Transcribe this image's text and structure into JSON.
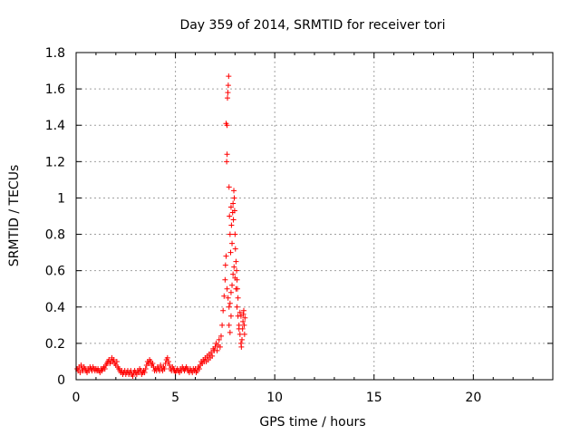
{
  "chart_data": {
    "type": "scatter",
    "title": "Day 359 of 2014, SRMTID for receiver tori",
    "xlabel": "GPS time / hours",
    "ylabel": "SRMTID / TECUs",
    "xlim": [
      0,
      24
    ],
    "ylim": [
      0,
      1.8
    ],
    "xticks": [
      0,
      5,
      10,
      15,
      20
    ],
    "xtick_labels": [
      "0",
      "5",
      "10",
      "15",
      "20"
    ],
    "yticks": [
      0,
      0.2,
      0.4,
      0.6,
      0.8,
      1.0,
      1.2,
      1.4,
      1.6,
      1.8
    ],
    "ytick_labels": [
      "0",
      "0.2",
      "0.4",
      "0.6",
      "0.8",
      "1",
      "1.2",
      "1.4",
      "1.6",
      "1.8"
    ],
    "grid": true,
    "marker": "+",
    "colors": {
      "series": "#ff0000",
      "axis": "#000000",
      "grid": "#a0a0a0"
    },
    "series": [
      {
        "name": "SRMTID",
        "points": [
          [
            0.05,
            0.06
          ],
          [
            0.1,
            0.05
          ],
          [
            0.15,
            0.07
          ],
          [
            0.2,
            0.04
          ],
          [
            0.25,
            0.08
          ],
          [
            0.3,
            0.06
          ],
          [
            0.35,
            0.05
          ],
          [
            0.4,
            0.07
          ],
          [
            0.45,
            0.06
          ],
          [
            0.5,
            0.05
          ],
          [
            0.55,
            0.04
          ],
          [
            0.6,
            0.06
          ],
          [
            0.65,
            0.05
          ],
          [
            0.7,
            0.07
          ],
          [
            0.75,
            0.06
          ],
          [
            0.8,
            0.05
          ],
          [
            0.85,
            0.07
          ],
          [
            0.9,
            0.06
          ],
          [
            0.95,
            0.05
          ],
          [
            1.0,
            0.06
          ],
          [
            1.05,
            0.05
          ],
          [
            1.1,
            0.06
          ],
          [
            1.15,
            0.05
          ],
          [
            1.2,
            0.04
          ],
          [
            1.25,
            0.06
          ],
          [
            1.3,
            0.05
          ],
          [
            1.35,
            0.06
          ],
          [
            1.4,
            0.07
          ],
          [
            1.45,
            0.06
          ],
          [
            1.5,
            0.08
          ],
          [
            1.55,
            0.09
          ],
          [
            1.6,
            0.1
          ],
          [
            1.65,
            0.11
          ],
          [
            1.7,
            0.09
          ],
          [
            1.75,
            0.1
          ],
          [
            1.8,
            0.12
          ],
          [
            1.85,
            0.1
          ],
          [
            1.9,
            0.11
          ],
          [
            1.95,
            0.09
          ],
          [
            2.0,
            0.08
          ],
          [
            2.05,
            0.1
          ],
          [
            2.1,
            0.07
          ],
          [
            2.15,
            0.06
          ],
          [
            2.2,
            0.05
          ],
          [
            2.25,
            0.04
          ],
          [
            2.3,
            0.05
          ],
          [
            2.35,
            0.03
          ],
          [
            2.4,
            0.04
          ],
          [
            2.45,
            0.05
          ],
          [
            2.5,
            0.03
          ],
          [
            2.55,
            0.04
          ],
          [
            2.6,
            0.05
          ],
          [
            2.65,
            0.03
          ],
          [
            2.7,
            0.04
          ],
          [
            2.75,
            0.05
          ],
          [
            2.8,
            0.03
          ],
          [
            2.85,
            0.02
          ],
          [
            2.9,
            0.04
          ],
          [
            2.95,
            0.05
          ],
          [
            3.0,
            0.04
          ],
          [
            3.05,
            0.03
          ],
          [
            3.1,
            0.05
          ],
          [
            3.15,
            0.04
          ],
          [
            3.2,
            0.06
          ],
          [
            3.25,
            0.05
          ],
          [
            3.3,
            0.03
          ],
          [
            3.35,
            0.04
          ],
          [
            3.4,
            0.05
          ],
          [
            3.45,
            0.04
          ],
          [
            3.5,
            0.06
          ],
          [
            3.55,
            0.08
          ],
          [
            3.6,
            0.1
          ],
          [
            3.65,
            0.09
          ],
          [
            3.7,
            0.11
          ],
          [
            3.75,
            0.1
          ],
          [
            3.8,
            0.08
          ],
          [
            3.85,
            0.09
          ],
          [
            3.9,
            0.07
          ],
          [
            3.95,
            0.05
          ],
          [
            4.0,
            0.06
          ],
          [
            4.05,
            0.05
          ],
          [
            4.1,
            0.07
          ],
          [
            4.15,
            0.06
          ],
          [
            4.2,
            0.05
          ],
          [
            4.25,
            0.08
          ],
          [
            4.3,
            0.06
          ],
          [
            4.35,
            0.05
          ],
          [
            4.4,
            0.07
          ],
          [
            4.45,
            0.06
          ],
          [
            4.5,
            0.09
          ],
          [
            4.55,
            0.11
          ],
          [
            4.6,
            0.12
          ],
          [
            4.65,
            0.1
          ],
          [
            4.7,
            0.08
          ],
          [
            4.75,
            0.06
          ],
          [
            4.8,
            0.05
          ],
          [
            4.85,
            0.07
          ],
          [
            4.9,
            0.06
          ],
          [
            4.95,
            0.05
          ],
          [
            5.0,
            0.04
          ],
          [
            5.05,
            0.05
          ],
          [
            5.1,
            0.06
          ],
          [
            5.15,
            0.05
          ],
          [
            5.2,
            0.04
          ],
          [
            5.25,
            0.06
          ],
          [
            5.3,
            0.05
          ],
          [
            5.35,
            0.07
          ],
          [
            5.4,
            0.06
          ],
          [
            5.45,
            0.05
          ],
          [
            5.5,
            0.06
          ],
          [
            5.55,
            0.07
          ],
          [
            5.6,
            0.06
          ],
          [
            5.65,
            0.05
          ],
          [
            5.7,
            0.04
          ],
          [
            5.75,
            0.06
          ],
          [
            5.8,
            0.05
          ],
          [
            5.85,
            0.04
          ],
          [
            5.9,
            0.06
          ],
          [
            5.95,
            0.05
          ],
          [
            6.0,
            0.06
          ],
          [
            6.05,
            0.04
          ],
          [
            6.1,
            0.05
          ],
          [
            6.15,
            0.07
          ],
          [
            6.2,
            0.06
          ],
          [
            6.25,
            0.08
          ],
          [
            6.3,
            0.1
          ],
          [
            6.35,
            0.09
          ],
          [
            6.4,
            0.11
          ],
          [
            6.45,
            0.1
          ],
          [
            6.5,
            0.12
          ],
          [
            6.55,
            0.1
          ],
          [
            6.6,
            0.13
          ],
          [
            6.65,
            0.11
          ],
          [
            6.7,
            0.14
          ],
          [
            6.75,
            0.12
          ],
          [
            6.8,
            0.15
          ],
          [
            6.85,
            0.13
          ],
          [
            6.9,
            0.17
          ],
          [
            6.95,
            0.16
          ],
          [
            7.0,
            0.18
          ],
          [
            7.05,
            0.2
          ],
          [
            7.1,
            0.16
          ],
          [
            7.15,
            0.19
          ],
          [
            7.2,
            0.22
          ],
          [
            7.25,
            0.18
          ],
          [
            7.3,
            0.24
          ],
          [
            7.35,
            0.3
          ],
          [
            7.4,
            0.38
          ],
          [
            7.45,
            0.46
          ],
          [
            7.5,
            0.55
          ],
          [
            7.52,
            0.63
          ],
          [
            7.55,
            0.68
          ],
          [
            7.58,
            1.2
          ],
          [
            7.6,
            1.4
          ],
          [
            7.62,
            1.55
          ],
          [
            7.64,
            1.58
          ],
          [
            7.66,
            1.62
          ],
          [
            7.68,
            1.67
          ],
          [
            7.6,
            1.24
          ],
          [
            7.55,
            1.41
          ],
          [
            7.7,
            1.06
          ],
          [
            7.72,
            0.9
          ],
          [
            7.75,
            0.8
          ],
          [
            7.78,
            0.7
          ],
          [
            7.8,
            0.95
          ],
          [
            7.82,
            0.85
          ],
          [
            7.85,
            0.75
          ],
          [
            7.88,
            0.92
          ],
          [
            7.9,
            0.97
          ],
          [
            7.92,
            0.88
          ],
          [
            7.94,
            1.04
          ],
          [
            7.96,
            1.0
          ],
          [
            7.98,
            0.93
          ],
          [
            8.0,
            0.8
          ],
          [
            8.02,
            0.72
          ],
          [
            8.05,
            0.65
          ],
          [
            8.08,
            0.6
          ],
          [
            8.1,
            0.55
          ],
          [
            8.12,
            0.5
          ],
          [
            8.15,
            0.45
          ],
          [
            7.6,
            0.5
          ],
          [
            7.65,
            0.45
          ],
          [
            7.7,
            0.4
          ],
          [
            7.75,
            0.42
          ],
          [
            7.8,
            0.48
          ],
          [
            7.85,
            0.52
          ],
          [
            7.9,
            0.58
          ],
          [
            7.95,
            0.62
          ],
          [
            8.0,
            0.56
          ],
          [
            8.05,
            0.5
          ],
          [
            8.1,
            0.4
          ],
          [
            8.15,
            0.35
          ],
          [
            8.2,
            0.3
          ],
          [
            8.25,
            0.25
          ],
          [
            8.3,
            0.2
          ],
          [
            8.32,
            0.18
          ],
          [
            8.35,
            0.22
          ],
          [
            8.38,
            0.28
          ],
          [
            8.4,
            0.32
          ],
          [
            8.42,
            0.36
          ],
          [
            8.44,
            0.38
          ],
          [
            8.46,
            0.3
          ],
          [
            8.48,
            0.25
          ],
          [
            8.5,
            0.34
          ],
          [
            8.3,
            0.35
          ],
          [
            8.2,
            0.28
          ],
          [
            8.25,
            0.37
          ],
          [
            7.7,
            0.3
          ],
          [
            7.75,
            0.26
          ],
          [
            7.8,
            0.35
          ]
        ]
      }
    ]
  }
}
